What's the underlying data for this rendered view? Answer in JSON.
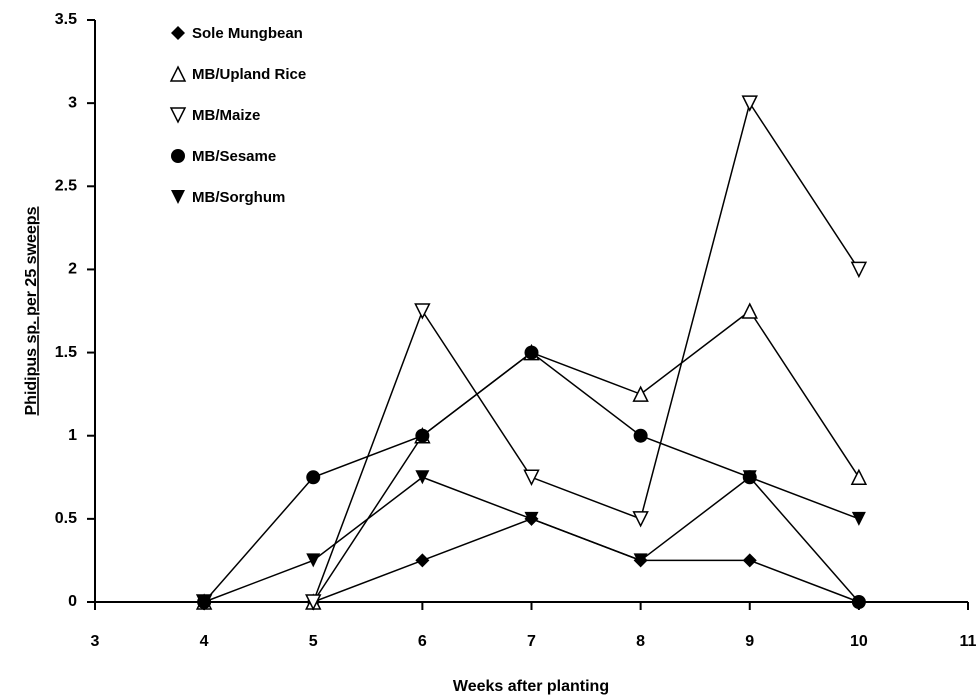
{
  "chart_data": {
    "type": "line",
    "x": [
      4,
      5,
      6,
      7,
      8,
      9,
      10
    ],
    "series": [
      {
        "name": "Sole Mungbean",
        "color": "#000000",
        "marker": "diamond",
        "values": [
          0,
          0,
          0.25,
          0.5,
          0.25,
          0.25,
          0
        ]
      },
      {
        "name": "MB/Upland Rice",
        "color": "#000000",
        "marker": "triangle-up-open",
        "values": [
          0,
          0,
          1,
          1.5,
          1.25,
          1.75,
          0.75
        ]
      },
      {
        "name": "MB/Maize",
        "color": "#000000",
        "marker": "triangle-down-open",
        "values": [
          0,
          0,
          1.75,
          0.75,
          0.5,
          3,
          2
        ]
      },
      {
        "name": "MB/Sesame",
        "color": "#000000",
        "marker": "circle",
        "values": [
          0,
          0.75,
          1,
          1.5,
          1,
          0.75,
          0
        ]
      },
      {
        "name": "MB/Sorghum",
        "color": "#000000",
        "marker": "triangle-down",
        "values": [
          0,
          0.25,
          0.75,
          0.5,
          0.25,
          0.75,
          0.5
        ]
      }
    ],
    "xlabel": "Weeks after planting",
    "ylabel": "Phidipus sp. per 25 sweeps",
    "xlim": [
      3,
      11
    ],
    "xticks": [
      3,
      4,
      5,
      6,
      7,
      8,
      9,
      10,
      11
    ],
    "ylim": [
      0,
      3.5
    ],
    "yticks": [
      0,
      0.5,
      1,
      1.5,
      2,
      2.5,
      3,
      3.5
    ],
    "legend": "upper-left",
    "grid": false
  }
}
